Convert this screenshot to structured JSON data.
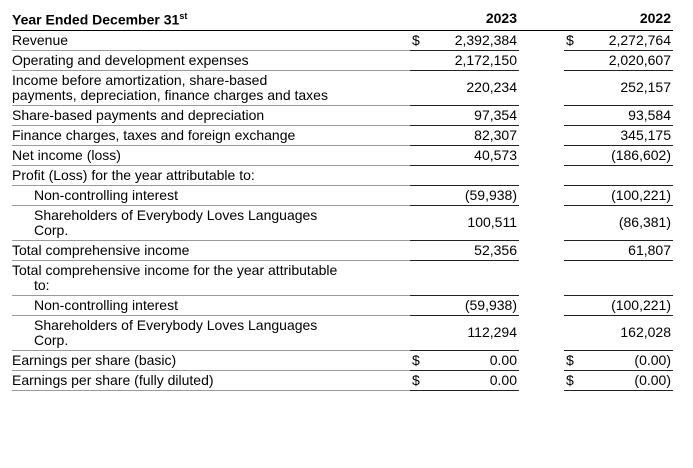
{
  "header": {
    "label": "Year Ended December 31",
    "label_suffix": "st",
    "columns": [
      "2023",
      "2022"
    ]
  },
  "table": {
    "rows": [
      {
        "label": "Revenue",
        "currency": [
          "$",
          "$"
        ],
        "values": [
          "2,392,384",
          "2,272,764"
        ]
      },
      {
        "label": "Operating and development expenses",
        "values": [
          "2,172,150",
          "2,020,607"
        ]
      },
      {
        "label": "Income before amortization, share-based payments, depreciation, finance charges and taxes",
        "values": [
          "220,234",
          "252,157"
        ]
      },
      {
        "label": "Share-based payments and depreciation",
        "values": [
          "97,354",
          "93,584"
        ]
      },
      {
        "label": "Finance charges, taxes and foreign exchange",
        "values": [
          "82,307",
          "345,175"
        ]
      },
      {
        "label": "Net income (loss)",
        "values": [
          "40,573",
          "(186,602)"
        ]
      },
      {
        "label": "Profit (Loss) for the year attributable to:"
      },
      {
        "label": "Non-controlling interest",
        "indent": true,
        "values": [
          "(59,938)",
          "(100,221)"
        ]
      },
      {
        "label": "Shareholders of Everybody Loves Languages Corp.",
        "indent": true,
        "values": [
          "100,511",
          "(86,381)"
        ]
      },
      {
        "label": "Total comprehensive income",
        "values": [
          "52,356",
          "61,807"
        ]
      },
      {
        "label": "Total comprehensive income for the year attributable to:",
        "hanging": true
      },
      {
        "label": "Non-controlling interest",
        "indent": true,
        "values": [
          "(59,938)",
          "(100,221)"
        ]
      },
      {
        "label": "Shareholders of Everybody Loves Languages Corp.",
        "indent": true,
        "values": [
          "112,294",
          "162,028"
        ]
      },
      {
        "label": "Earnings per share (basic)",
        "currency": [
          "$",
          "$"
        ],
        "values": [
          "0.00",
          "(0.00)"
        ]
      },
      {
        "label": "Earnings per share (fully diluted)",
        "currency": [
          "$",
          "$"
        ],
        "values": [
          "0.00",
          "(0.00)"
        ]
      }
    ]
  }
}
